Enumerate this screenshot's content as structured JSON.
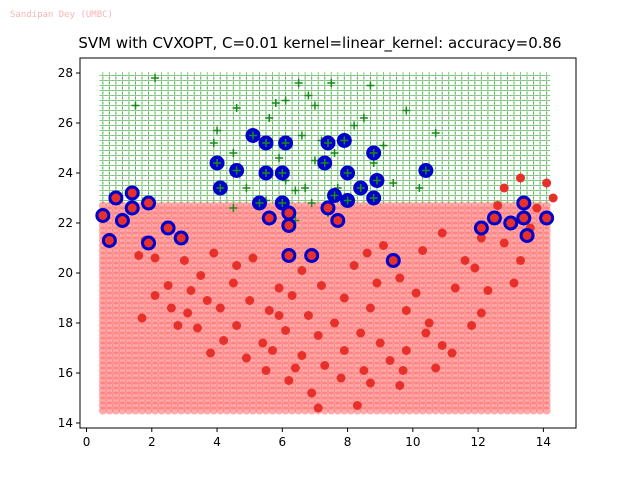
{
  "watermark": "Sandipan Dey (UMBC)",
  "chart_data": {
    "type": "scatter",
    "title": "SVM with CVXOPT, C=0.01 kernel=linear_kernel: accuracy=0.86",
    "xlabel": "",
    "ylabel": "",
    "xlim": [
      -0.2,
      15.0
    ],
    "ylim": [
      13.8,
      28.6
    ],
    "xticks": [
      0,
      2,
      4,
      6,
      8,
      10,
      12,
      14
    ],
    "yticks": [
      14,
      16,
      18,
      20,
      22,
      24,
      26,
      28
    ],
    "grid": false,
    "decision_region": {
      "x_range": [
        0.5,
        14.2
      ],
      "y_range": [
        14.5,
        27.9
      ],
      "step": 0.2,
      "boundary_y": 22.75,
      "upper_class": "plus",
      "upper_color": "#2ca02c",
      "lower_class": "circle",
      "lower_color": "#ff6666"
    },
    "series": [
      {
        "marker": "plus",
        "color": "#1a8a1a",
        "points": [
          [
            2.1,
            27.8
          ],
          [
            1.5,
            26.7
          ],
          [
            6.5,
            27.6
          ],
          [
            7.5,
            27.6
          ],
          [
            8.7,
            27.5
          ],
          [
            6.8,
            27.1
          ],
          [
            7.0,
            26.7
          ],
          [
            6.1,
            26.9
          ],
          [
            4.6,
            26.6
          ],
          [
            5.8,
            26.8
          ],
          [
            9.8,
            26.5
          ],
          [
            8.5,
            26.2
          ],
          [
            5.6,
            26.2
          ],
          [
            4.0,
            25.7
          ],
          [
            5.2,
            25.6
          ],
          [
            6.6,
            25.5
          ],
          [
            8.2,
            25.9
          ],
          [
            7.2,
            25.3
          ],
          [
            10.7,
            25.6
          ],
          [
            3.9,
            25.2
          ],
          [
            9.1,
            25.1
          ],
          [
            7.6,
            24.8
          ],
          [
            7.0,
            24.5
          ],
          [
            5.9,
            24.6
          ],
          [
            8.8,
            24.4
          ],
          [
            4.5,
            24.8
          ],
          [
            4.9,
            23.4
          ],
          [
            6.1,
            23.7
          ],
          [
            6.7,
            23.4
          ],
          [
            8.7,
            23.0
          ],
          [
            9.4,
            23.6
          ],
          [
            10.2,
            23.4
          ],
          [
            6.9,
            22.8
          ],
          [
            6.4,
            23.3
          ],
          [
            7.4,
            22.4
          ],
          [
            6.4,
            22.1
          ],
          [
            5.5,
            22.9
          ],
          [
            7.7,
            23.4
          ],
          [
            8.1,
            22.9
          ],
          [
            4.5,
            22.6
          ]
        ]
      },
      {
        "marker": "circle",
        "color": "#e8302a",
        "points": [
          [
            0.5,
            22.3
          ],
          [
            0.7,
            21.3
          ],
          [
            0.9,
            23.0
          ],
          [
            1.1,
            22.1
          ],
          [
            1.4,
            22.7
          ],
          [
            1.4,
            23.2
          ],
          [
            1.9,
            22.8
          ],
          [
            1.8,
            21.3
          ],
          [
            2.1,
            20.6
          ],
          [
            1.6,
            20.7
          ],
          [
            2.5,
            21.8
          ],
          [
            2.9,
            21.4
          ],
          [
            2.5,
            19.5
          ],
          [
            2.1,
            19.1
          ],
          [
            1.7,
            18.2
          ],
          [
            2.6,
            18.6
          ],
          [
            3.2,
            19.3
          ],
          [
            3.5,
            19.9
          ],
          [
            3.1,
            18.4
          ],
          [
            3.7,
            18.9
          ],
          [
            3.4,
            17.8
          ],
          [
            2.8,
            17.9
          ],
          [
            4.1,
            18.6
          ],
          [
            4.5,
            19.6
          ],
          [
            4.2,
            17.3
          ],
          [
            3.8,
            16.8
          ],
          [
            4.6,
            17.9
          ],
          [
            5.0,
            18.9
          ],
          [
            5.4,
            17.2
          ],
          [
            5.9,
            18.3
          ],
          [
            6.3,
            19.1
          ],
          [
            6.1,
            17.7
          ],
          [
            6.6,
            16.7
          ],
          [
            6.8,
            18.3
          ],
          [
            7.1,
            17.5
          ],
          [
            7.2,
            19.5
          ],
          [
            7.6,
            18.0
          ],
          [
            7.9,
            16.9
          ],
          [
            8.4,
            17.6
          ],
          [
            8.7,
            18.6
          ],
          [
            9.0,
            17.2
          ],
          [
            9.3,
            16.5
          ],
          [
            9.8,
            18.5
          ],
          [
            10.1,
            19.2
          ],
          [
            10.5,
            18.0
          ],
          [
            10.9,
            17.1
          ],
          [
            11.2,
            16.8
          ],
          [
            10.7,
            16.2
          ],
          [
            9.6,
            19.8
          ],
          [
            8.2,
            20.3
          ],
          [
            8.6,
            20.8
          ],
          [
            9.1,
            21.1
          ],
          [
            10.3,
            20.9
          ],
          [
            10.9,
            21.6
          ],
          [
            11.6,
            20.5
          ],
          [
            12.1,
            21.4
          ],
          [
            12.8,
            21.2
          ],
          [
            13.3,
            20.5
          ],
          [
            13.6,
            21.8
          ],
          [
            12.6,
            22.7
          ],
          [
            12.8,
            23.4
          ],
          [
            13.3,
            23.8
          ],
          [
            14.1,
            23.6
          ],
          [
            14.3,
            23.0
          ],
          [
            13.8,
            22.6
          ],
          [
            11.3,
            19.4
          ],
          [
            11.9,
            20.2
          ],
          [
            12.3,
            19.3
          ],
          [
            13.1,
            19.6
          ],
          [
            9.8,
            16.9
          ],
          [
            8.7,
            15.6
          ],
          [
            7.8,
            15.8
          ],
          [
            6.9,
            15.2
          ],
          [
            6.2,
            15.7
          ],
          [
            5.5,
            16.1
          ],
          [
            4.9,
            16.6
          ],
          [
            5.7,
            16.9
          ],
          [
            7.3,
            16.3
          ],
          [
            8.5,
            16.1
          ],
          [
            9.6,
            15.5
          ],
          [
            7.1,
            14.6
          ],
          [
            8.3,
            14.7
          ],
          [
            5.9,
            19.4
          ],
          [
            6.6,
            20.1
          ],
          [
            7.9,
            19.0
          ],
          [
            4.6,
            20.3
          ],
          [
            5.1,
            20.6
          ],
          [
            3.0,
            20.5
          ],
          [
            9.7,
            16.1
          ],
          [
            10.4,
            17.6
          ],
          [
            11.8,
            17.9
          ],
          [
            12.1,
            18.4
          ],
          [
            3.9,
            20.8
          ],
          [
            5.6,
            18.5
          ],
          [
            6.4,
            16.2
          ],
          [
            8.9,
            19.6
          ]
        ]
      },
      {
        "marker": "support-plus",
        "color": "#0000cc",
        "points": [
          [
            4.0,
            24.4
          ],
          [
            4.1,
            23.4
          ],
          [
            4.6,
            24.1
          ],
          [
            5.1,
            25.5
          ],
          [
            5.5,
            25.2
          ],
          [
            5.5,
            24.0
          ],
          [
            6.1,
            25.2
          ],
          [
            6.0,
            24.0
          ],
          [
            6.0,
            22.8
          ],
          [
            7.4,
            25.2
          ],
          [
            7.3,
            24.4
          ],
          [
            7.6,
            23.1
          ],
          [
            7.9,
            25.3
          ],
          [
            8.0,
            24.0
          ],
          [
            8.0,
            22.9
          ],
          [
            8.4,
            23.4
          ],
          [
            8.8,
            24.8
          ],
          [
            8.9,
            23.7
          ],
          [
            8.8,
            23.0
          ],
          [
            10.4,
            24.1
          ],
          [
            5.3,
            22.8
          ]
        ]
      },
      {
        "marker": "support-circle",
        "color": "#0000cc",
        "points": [
          [
            0.5,
            22.3
          ],
          [
            0.7,
            21.3
          ],
          [
            0.9,
            23.0
          ],
          [
            1.1,
            22.1
          ],
          [
            1.4,
            22.6
          ],
          [
            1.4,
            23.2
          ],
          [
            1.9,
            22.8
          ],
          [
            1.9,
            21.2
          ],
          [
            2.5,
            21.8
          ],
          [
            2.9,
            21.4
          ],
          [
            5.6,
            22.2
          ],
          [
            6.2,
            22.4
          ],
          [
            6.2,
            21.9
          ],
          [
            6.2,
            20.7
          ],
          [
            6.9,
            20.7
          ],
          [
            7.4,
            22.6
          ],
          [
            7.7,
            22.1
          ],
          [
            9.4,
            20.5
          ],
          [
            12.1,
            21.8
          ],
          [
            12.5,
            22.2
          ],
          [
            13.0,
            22.0
          ],
          [
            13.4,
            22.8
          ],
          [
            13.4,
            22.2
          ],
          [
            13.5,
            21.5
          ],
          [
            14.1,
            22.2
          ]
        ]
      }
    ]
  }
}
